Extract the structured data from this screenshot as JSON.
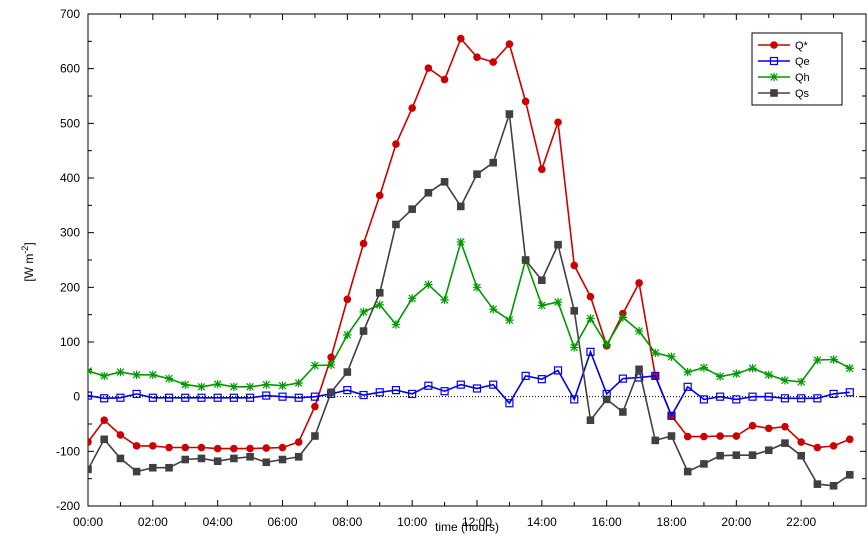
{
  "chart_data": {
    "type": "line",
    "title": "",
    "xlabel": "time (hours)",
    "ylabel": "[W m-2]",
    "xlim": [
      0,
      24
    ],
    "ylim": [
      -200,
      700
    ],
    "grid": false,
    "legend_position": "top-right",
    "zero_reference_line": "dotted",
    "x_ticks": [
      {
        "value": 0,
        "label": "00:00"
      },
      {
        "value": 2,
        "label": "02:00"
      },
      {
        "value": 4,
        "label": "04:00"
      },
      {
        "value": 6,
        "label": "06:00"
      },
      {
        "value": 8,
        "label": "08:00"
      },
      {
        "value": 10,
        "label": "10:00"
      },
      {
        "value": 12,
        "label": "12:00"
      },
      {
        "value": 14,
        "label": "14:00"
      },
      {
        "value": 16,
        "label": "16:00"
      },
      {
        "value": 18,
        "label": "18:00"
      },
      {
        "value": 20,
        "label": "20:00"
      },
      {
        "value": 22,
        "label": "22:00"
      }
    ],
    "y_ticks": [
      {
        "value": -200,
        "label": "-200"
      },
      {
        "value": -100,
        "label": "-100"
      },
      {
        "value": 0,
        "label": "0"
      },
      {
        "value": 100,
        "label": "100"
      },
      {
        "value": 200,
        "label": "200"
      },
      {
        "value": 300,
        "label": "300"
      },
      {
        "value": 400,
        "label": "400"
      },
      {
        "value": 500,
        "label": "500"
      },
      {
        "value": 600,
        "label": "600"
      },
      {
        "value": 700,
        "label": "700"
      }
    ],
    "x": [
      0,
      0.5,
      1,
      1.5,
      2,
      2.5,
      3,
      3.5,
      4,
      4.5,
      5,
      5.5,
      6,
      6.5,
      7,
      7.5,
      8,
      8.5,
      9,
      9.5,
      10,
      10.5,
      11,
      11.5,
      12,
      12.5,
      13,
      13.5,
      14,
      14.5,
      15,
      15.5,
      16,
      16.5,
      17,
      17.5,
      18,
      18.5,
      19,
      19.5,
      20,
      20.5,
      21,
      21.5,
      22,
      22.5,
      23,
      23.5
    ],
    "series": [
      {
        "name": "Q*",
        "color": "#cc0000",
        "marker": "filled-circle",
        "values": [
          -83,
          -43,
          -70,
          -90,
          -90,
          -93,
          -93,
          -93,
          -95,
          -95,
          -95,
          -94,
          -93,
          -83,
          -18,
          72,
          178,
          280,
          368,
          462,
          528,
          601,
          580,
          655,
          621,
          612,
          645,
          540,
          416,
          502,
          240,
          183,
          93,
          152,
          208,
          38,
          -35,
          -73,
          -73,
          -72,
          -72,
          -53,
          -58,
          -55,
          -83,
          -93,
          -90,
          -78
        ]
      },
      {
        "name": "Qe",
        "color": "#0000ee",
        "marker": "open-square",
        "values": [
          2,
          -3,
          -2,
          5,
          -2,
          -2,
          -2,
          -2,
          -2,
          -2,
          -2,
          2,
          0,
          -2,
          0,
          5,
          12,
          3,
          8,
          12,
          5,
          20,
          10,
          22,
          15,
          22,
          -12,
          38,
          32,
          48,
          -5,
          82,
          5,
          33,
          35,
          38,
          -35,
          18,
          -5,
          0,
          -5,
          0,
          0,
          -3,
          -3,
          -3,
          5,
          8
        ]
      },
      {
        "name": "Qh",
        "color": "#009900",
        "marker": "asterisk",
        "values": [
          47,
          38,
          45,
          40,
          40,
          33,
          22,
          18,
          23,
          18,
          18,
          22,
          20,
          25,
          57,
          58,
          113,
          155,
          168,
          132,
          180,
          205,
          177,
          283,
          200,
          160,
          140,
          250,
          167,
          173,
          90,
          143,
          95,
          145,
          120,
          80,
          73,
          45,
          53,
          37,
          42,
          52,
          40,
          30,
          27,
          67,
          68,
          52
        ]
      },
      {
        "name": "Qs",
        "color": "#404040",
        "marker": "filled-square",
        "values": [
          -133,
          -78,
          -113,
          -137,
          -130,
          -130,
          -115,
          -113,
          -118,
          -113,
          -110,
          -120,
          -115,
          -110,
          -72,
          8,
          45,
          120,
          190,
          315,
          343,
          373,
          393,
          348,
          407,
          428,
          517,
          250,
          213,
          278,
          157,
          -43,
          -5,
          -28,
          50,
          -80,
          -72,
          -137,
          -123,
          -108,
          -107,
          -107,
          -98,
          -85,
          -108,
          -160,
          -163,
          -143
        ]
      }
    ]
  }
}
